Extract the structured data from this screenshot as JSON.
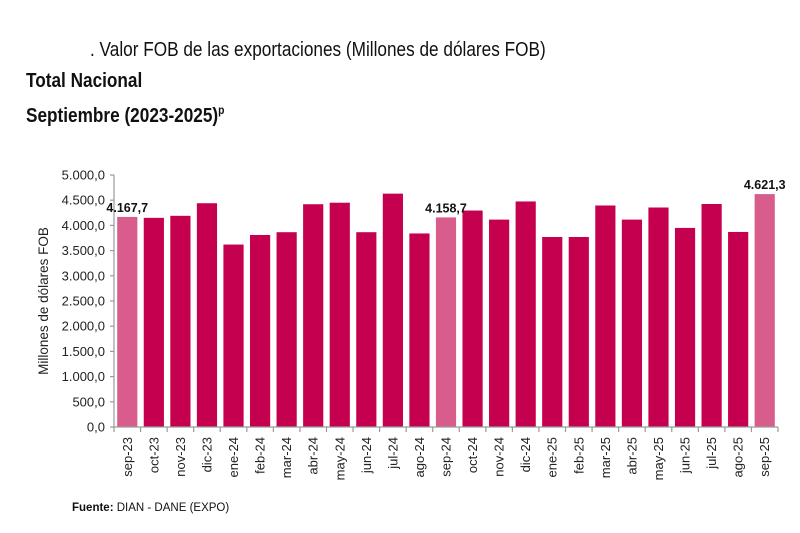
{
  "header": {
    "title": ". Valor FOB de las exportaciones (Millones de dólares FOB)",
    "subtitle1": "Total Nacional",
    "subtitle2": "Septiembre (2023-2025)",
    "subtitle2_sup": "p"
  },
  "source": {
    "label": "Fuente:",
    "text": "DIAN - DANE (EXPO)"
  },
  "colors": {
    "bar": "#C5004F",
    "highlight": "#D85C8C",
    "axis": "#9a9a9a"
  },
  "chart_data": {
    "type": "bar",
    "title": ". Valor FOB de las exportaciones (Millones de dólares FOB)",
    "xlabel": "",
    "ylabel": "Millones de dólares FOB",
    "ylim": [
      0,
      5000
    ],
    "ytick_step": 500,
    "ytick_labels": [
      "0,0",
      "500,0",
      "1.000,0",
      "1.500,0",
      "2.000,0",
      "2.500,0",
      "3.000,0",
      "3.500,0",
      "4.000,0",
      "4.500,0",
      "5.000,0"
    ],
    "grid": false,
    "legend": "none",
    "categories": [
      "sep-23",
      "oct-23",
      "nov-23",
      "dic-23",
      "ene-24",
      "feb-24",
      "mar-24",
      "abr-24",
      "may-24",
      "jun-24",
      "jul-24",
      "ago-24",
      "sep-24",
      "oct-24",
      "nov-24",
      "dic-24",
      "ene-25",
      "feb-25",
      "mar-25",
      "abr-25",
      "may-25",
      "jun-25",
      "jul-25",
      "ago-25",
      "sep-25"
    ],
    "values": [
      4167.7,
      4150,
      4190,
      4440,
      3620,
      3810,
      3865,
      4420,
      4450,
      3865,
      4630,
      3840,
      4158.7,
      4295,
      4115,
      4475,
      3770,
      3770,
      4395,
      4115,
      4355,
      3950,
      4425,
      3870,
      4621.3
    ],
    "highlighted": [
      "sep-23",
      "sep-24",
      "sep-25"
    ],
    "data_labels": [
      {
        "category": "sep-23",
        "text": "4.167,7"
      },
      {
        "category": "sep-24",
        "text": "4.158,7"
      },
      {
        "category": "sep-25",
        "text": "4.621,3"
      }
    ]
  }
}
